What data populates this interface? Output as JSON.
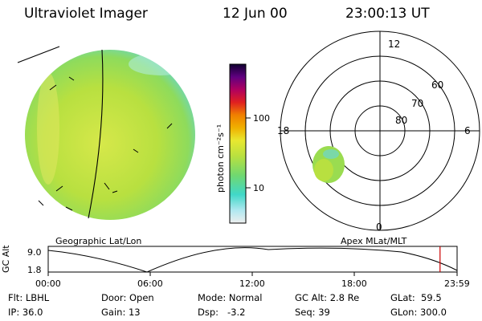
{
  "header": {
    "instrument": "Ultraviolet Imager",
    "date": "12 Jun 00",
    "time": "23:00:13 UT"
  },
  "panels": {
    "left_label": "Geographic Lat/Lon",
    "right_label": "Apex MLat/MLT"
  },
  "colorbar": {
    "unit_label": "photon cm⁻²s⁻¹",
    "tick_high": "100",
    "tick_low": "10"
  },
  "polar": {
    "mlt_top": "12",
    "mlt_left": "18",
    "mlt_right": "6",
    "mlt_bottom": "0",
    "lat_60": "60",
    "lat_70": "70",
    "lat_80": "80"
  },
  "timeline": {
    "ylabel": "GC Alt",
    "y_high": "9.0",
    "y_low": "1.8",
    "ticks": [
      "00:00",
      "06:00",
      "12:00",
      "18:00",
      "23:59"
    ],
    "current_fraction": 0.9583
  },
  "info": {
    "filter": "Flt: LBHL",
    "ip": "IP: 36.0",
    "door": "Door: Open",
    "gain": "Gain: 13",
    "mode": "Mode: Normal",
    "dsp": "Dsp:   -3.2",
    "gc_alt": "GC Alt: 2.8 Re",
    "seq": "Seq: 39",
    "glat": "GLat:  59.5",
    "glon": "GLon: 300.0"
  },
  "colors": {
    "image_main": "#b8e040",
    "image_edge": "#70d8c0",
    "image_bright": "#e0e860",
    "marker": "#cc0000"
  }
}
